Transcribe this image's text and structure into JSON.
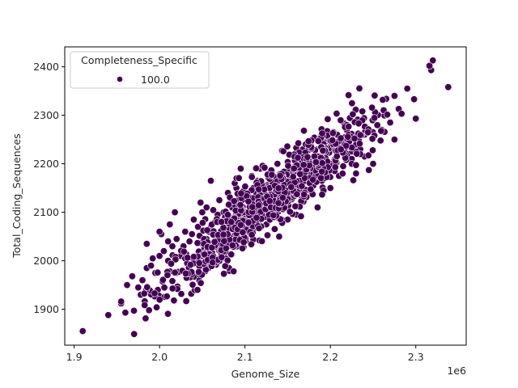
{
  "chart_data": {
    "type": "scatter",
    "title": "",
    "xlabel": "Genome_Size",
    "ylabel": "Total_Coding_Sequences",
    "x_offset_label": "1e6",
    "xlim": [
      1.889,
      2.359
    ],
    "ylim": [
      1826,
      2441
    ],
    "x_ticks": [
      1.9,
      2.0,
      2.1,
      2.2,
      2.3
    ],
    "x_tick_labels": [
      "1.9",
      "2.0",
      "2.1",
      "2.2",
      "2.3"
    ],
    "y_ticks": [
      1900,
      2000,
      2100,
      2200,
      2300,
      2400
    ],
    "y_tick_labels": [
      "1900",
      "2000",
      "2100",
      "2200",
      "2300",
      "2400"
    ],
    "grid": false,
    "legend": {
      "title": "Completeness_Specific",
      "position": "upper left",
      "entries": [
        {
          "label": "100.0",
          "color": "#440154"
        }
      ]
    },
    "series": [
      {
        "name": "100.0",
        "color": "#440154",
        "edgecolor": "#ffffff",
        "points_note": "approx. 1000 points; x in units of 1e6",
        "x": [
          1.91,
          1.94,
          1.955,
          1.96,
          1.97,
          1.955,
          1.962,
          1.975,
          1.968,
          1.98,
          1.985,
          1.978,
          1.99,
          1.992,
          1.995,
          2.0,
          1.985,
          1.998,
          2.005,
          2.01,
          2.002,
          2.015,
          2.02,
          2.012,
          2.025,
          2.03,
          2.018,
          2.035,
          2.04,
          2.028,
          2.045,
          2.05,
          2.038,
          2.055,
          2.06,
          2.048,
          2.065,
          2.07,
          2.058,
          2.075,
          2.08,
          2.068,
          2.085,
          2.09,
          2.078,
          2.095,
          2.1,
          2.088,
          2.105,
          2.11,
          2.098,
          2.115,
          2.12,
          2.108,
          2.125,
          2.13,
          2.118,
          2.135,
          2.14,
          2.128,
          2.145,
          2.15,
          2.138,
          2.155,
          2.16,
          2.148,
          2.165,
          2.17,
          2.158,
          2.175,
          2.18,
          2.168,
          2.185,
          2.19,
          2.178,
          2.195,
          2.2,
          2.188,
          2.205,
          2.21,
          2.198,
          2.215,
          2.22,
          2.208,
          2.225,
          2.23,
          2.218,
          2.235,
          2.24,
          2.25,
          2.275,
          2.27,
          2.3,
          2.28,
          2.298,
          2.275,
          2.29,
          2.338,
          2.318,
          2.316,
          2.32,
          2.26,
          2.255,
          2.245,
          2.095,
          2.06,
          2.08,
          2.01,
          2.0,
          2.14,
          2.16,
          2.185,
          2.2,
          2.23,
          2.15,
          2.125,
          2.105,
          2.07,
          2.045,
          2.02,
          2.03,
          2.09,
          2.115,
          2.135,
          2.17,
          2.19,
          2.21,
          2.225,
          2.24,
          2.055,
          2.075,
          2.1,
          2.12,
          2.145,
          2.165,
          2.18,
          2.205,
          2.215,
          2.235
        ],
        "y": [
          1855,
          1888,
          1912,
          1893,
          1897,
          1916,
          1950,
          1945,
          1968,
          1960,
          1985,
          1930,
          1990,
          2005,
          1975,
          2010,
          2035,
          1940,
          2020,
          2000,
          2055,
          2030,
          2045,
          2075,
          2010,
          2060,
          2100,
          2040,
          2085,
          2030,
          2070,
          2100,
          2055,
          2110,
          2070,
          2120,
          2080,
          2125,
          2060,
          2100,
          2140,
          2095,
          2110,
          2150,
          2070,
          2130,
          2100,
          2160,
          2125,
          2150,
          2090,
          2165,
          2130,
          2175,
          2120,
          2160,
          2190,
          2140,
          2175,
          2110,
          2170,
          2150,
          2200,
          2160,
          2190,
          2140,
          2200,
          2175,
          2220,
          2185,
          2160,
          2230,
          2190,
          2215,
          2180,
          2230,
          2200,
          2245,
          2210,
          2230,
          2190,
          2250,
          2220,
          2260,
          2210,
          2240,
          2280,
          2230,
          2260,
          2200,
          2250,
          2285,
          2293,
          2313,
          2333,
          2340,
          2355,
          2358,
          2393,
          2402,
          2413,
          2270,
          2300,
          2187,
          2190,
          2165,
          2140,
          2040,
          2060,
          2050,
          2095,
          2110,
          2150,
          2180,
          2085,
          2075,
          2060,
          2020,
          2000,
          1975,
          2005,
          2080,
          2095,
          2110,
          2130,
          2165,
          2175,
          2200,
          2215,
          2045,
          2065,
          2090,
          2120,
          2130,
          2150,
          2155,
          2185,
          2195,
          2220
        ]
      }
    ]
  },
  "axes": {
    "xlabel": "Genome_Size",
    "ylabel": "Total_Coding_Sequences",
    "x_offset": "1e6"
  },
  "legend": {
    "title": "Completeness_Specific",
    "label": "100.0"
  }
}
